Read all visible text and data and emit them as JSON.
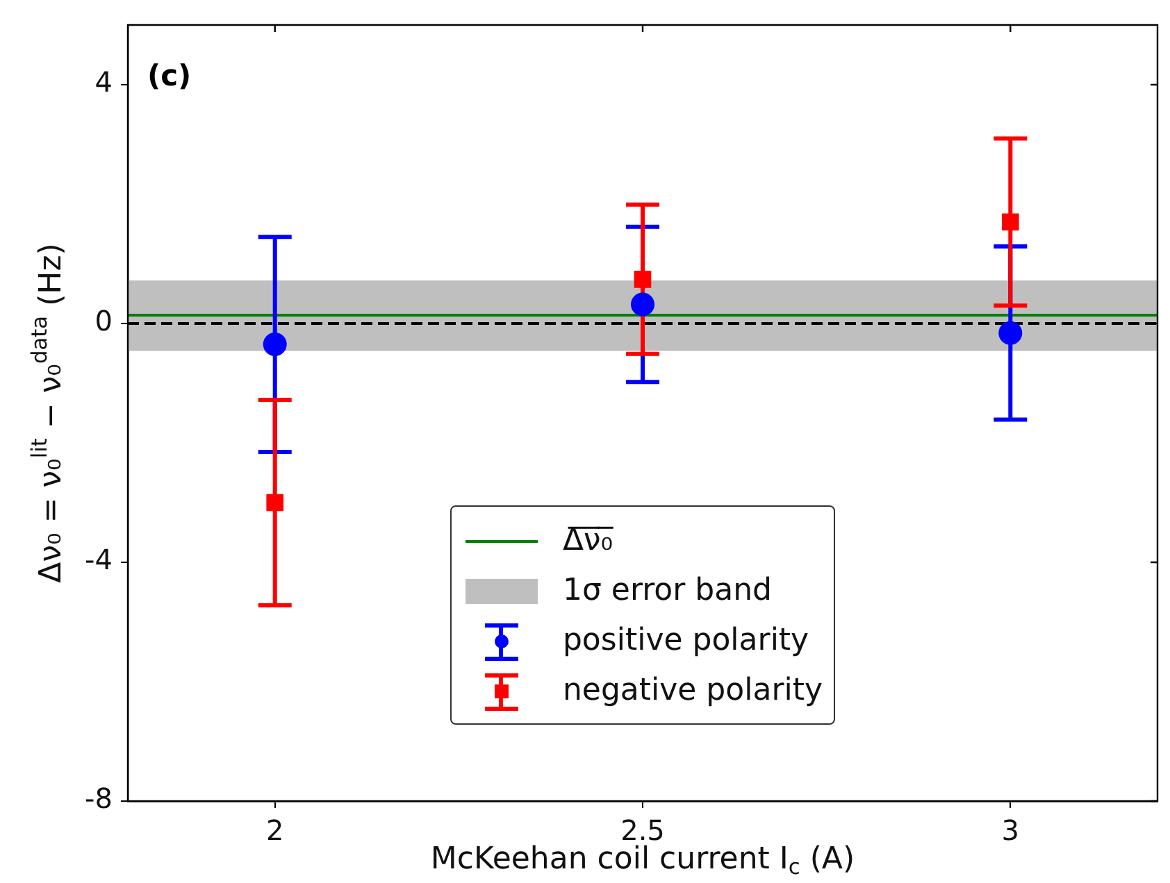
{
  "chart_data": {
    "type": "scatter",
    "xlabel": "McKeehan coil current I$_{c}$ (A)",
    "ylabel": "Δν₀ = ν₀$^{lit}$ − ν₀$^{data}$ (Hz)",
    "annotations": [
      "(c)"
    ],
    "x": [
      2,
      2.5,
      3
    ],
    "xlim": [
      1.8,
      3.2
    ],
    "xticks": [
      2,
      2.5,
      3
    ],
    "ylim": [
      -8,
      5
    ],
    "yticks": [
      -8,
      -4,
      0,
      4
    ],
    "series": [
      {
        "name": "positive polarity",
        "color": "#0000ff",
        "marker": "circle",
        "values": [
          -0.35,
          0.32,
          -0.16
        ],
        "errors": [
          1.8,
          1.3,
          1.45
        ]
      },
      {
        "name": "negative polarity",
        "color": "#ff0000",
        "marker": "square",
        "values": [
          -3.0,
          0.74,
          1.7
        ],
        "errors": [
          1.72,
          1.25,
          1.4
        ]
      }
    ],
    "ref_lines": [
      {
        "axis": "y",
        "value": 0.14,
        "label": "Δ̅ν̅₀̅",
        "color": "#008000",
        "line_style": "solid"
      },
      {
        "axis": "y",
        "value": 0,
        "color": "#000000",
        "line_style": "dashed"
      }
    ],
    "bands": [
      {
        "axis": "y",
        "from": -0.46,
        "to": 0.72,
        "label": "1σ error band",
        "color": "#bfbfbf"
      }
    ],
    "legend": "bottom"
  }
}
